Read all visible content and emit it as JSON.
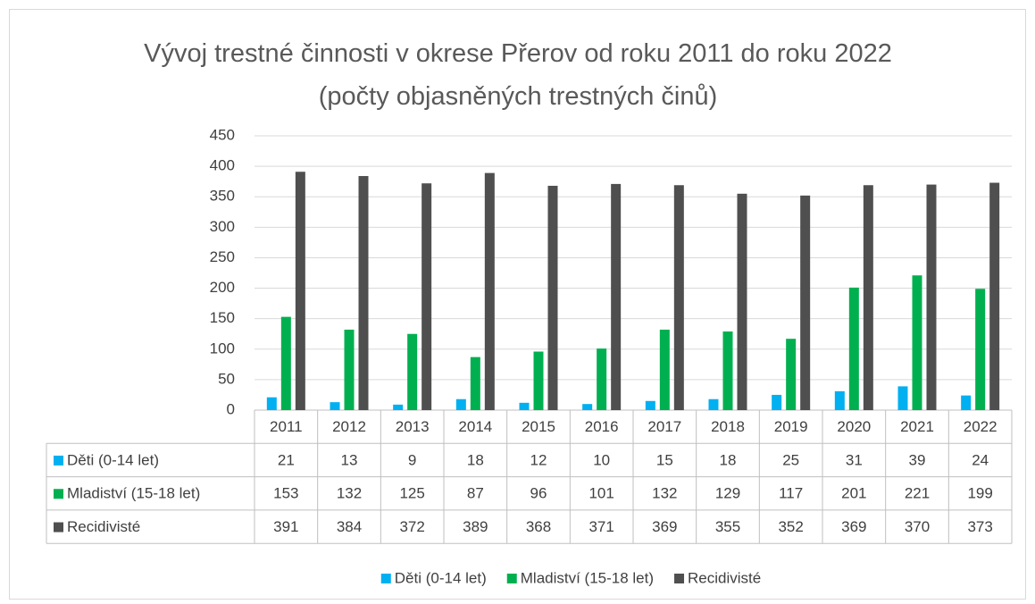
{
  "chart_data": {
    "type": "bar",
    "title": "Vývoj trestné činnosti v okrese Přerov od roku 2011 do roku 2022 (počty objasněných trestných činů)",
    "categories": [
      "2011",
      "2012",
      "2013",
      "2014",
      "2015",
      "2016",
      "2017",
      "2018",
      "2019",
      "2020",
      "2021",
      "2022"
    ],
    "series": [
      {
        "name": "Děti (0-14 let)",
        "color": "#00b0f0",
        "values": [
          21,
          13,
          9,
          18,
          12,
          10,
          15,
          18,
          25,
          31,
          39,
          24
        ]
      },
      {
        "name": "Mladiství (15-18 let)",
        "color": "#00b050",
        "values": [
          153,
          132,
          125,
          87,
          96,
          101,
          132,
          129,
          117,
          201,
          221,
          199
        ]
      },
      {
        "name": "Recidivisté",
        "color": "#4f4f4f",
        "values": [
          391,
          384,
          372,
          389,
          368,
          371,
          369,
          355,
          352,
          369,
          370,
          373
        ]
      }
    ],
    "ylim": [
      0,
      450
    ],
    "yticks": [
      0,
      50,
      100,
      150,
      200,
      250,
      300,
      350,
      400,
      450
    ],
    "grid": true,
    "legend": "bottom"
  }
}
